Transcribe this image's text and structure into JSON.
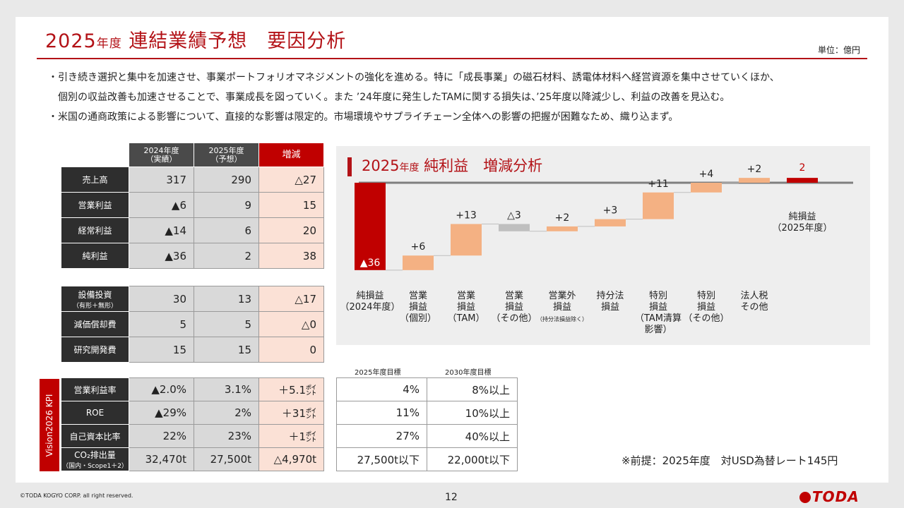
{
  "header": {
    "title_year": "2025",
    "title_year_suffix": "年度",
    "title_main": "連結業績予想　要因分析",
    "unit": "単位：億円"
  },
  "bullets": [
    "・引き続き選択と集中を加速させ、事業ポートフォリオマネジメントの強化を進める。特に「成長事業」の磁石材料、誘電体材料へ経営資源を集中させていくほか、",
    "　個別の収益改善も加速させることで、事業成長を図っていく。また ’24年度に発生したTAMに関する損失は、’25年度以降減少し、利益の改善を見込む。",
    "・米国の通商政策による影響について、直接的な影響は限定的。市場環境やサプライチェーン全体への影響の把握が困難なため、織り込まず。"
  ],
  "pl_table": {
    "headers": [
      {
        "line1": "2024年度",
        "line2": "（実績）"
      },
      {
        "line1": "2025年度",
        "line2": "（予想）"
      },
      {
        "line1": "増減",
        "line2": ""
      }
    ],
    "rows": [
      {
        "label": "売上高",
        "v1": "317",
        "v2": "290",
        "v3": "△27"
      },
      {
        "label": "営業利益",
        "v1": "▲6",
        "v2": "9",
        "v3": "15"
      },
      {
        "label": "経常利益",
        "v1": "▲14",
        "v2": "6",
        "v3": "20"
      },
      {
        "label": "純利益",
        "v1": "▲36",
        "v2": "2",
        "v3": "38"
      }
    ]
  },
  "capex_table": {
    "rows": [
      {
        "label": "設備投資",
        "sub": "（有形＋無形）",
        "v1": "30",
        "v2": "13",
        "v3": "△17"
      },
      {
        "label": "減価償却費",
        "sub": "",
        "v1": "5",
        "v2": "5",
        "v3": "△0"
      },
      {
        "label": "研究開発費",
        "sub": "",
        "v1": "15",
        "v2": "15",
        "v3": "0"
      }
    ]
  },
  "kpi": {
    "tab_label": "Vision2026 KPI",
    "rows": [
      {
        "label": "営業利益率",
        "sub": "",
        "v1": "▲2.0%",
        "v2": "3.1%",
        "v3": "＋5.1㌽",
        "t1": "4%",
        "t2": "8%以上"
      },
      {
        "label": "ROE",
        "sub": "",
        "v1": "▲29%",
        "v2": "2%",
        "v3": "＋31㌽",
        "t1": "11%",
        "t2": "10%以上"
      },
      {
        "label": "自己資本比率",
        "sub": "",
        "v1": "22%",
        "v2": "23%",
        "v3": "＋1㌽",
        "t1": "27%",
        "t2": "40%以上"
      },
      {
        "label": "CO₂排出量",
        "sub": "（国内・Scope1＋2）",
        "v1": "32,470t",
        "v2": "27,500t",
        "v3": "△4,970t",
        "t1": "27,500t以下",
        "t2": "22,000t以下"
      }
    ],
    "target_headers": [
      "2025年度目標",
      "2030年度目標"
    ]
  },
  "chart_data": {
    "type": "bar",
    "subtype": "waterfall",
    "title": "2025年度　純利益　増減分析",
    "title_year": "2025",
    "title_year_suffix": "年度",
    "title_rest": "純利益　増減分析",
    "categories": [
      [
        "純損益",
        "（2024年度）"
      ],
      [
        "営業",
        "損益",
        "（個別）"
      ],
      [
        "営業",
        "損益",
        "（TAM）"
      ],
      [
        "営業",
        "損益",
        "（その他）"
      ],
      [
        "営業外",
        "損益",
        "（持分法損益除く）"
      ],
      [
        "持分法",
        "損益"
      ],
      [
        "特別",
        "損益",
        "（TAM清算",
        "影響）"
      ],
      [
        "特別",
        "損益",
        "（その他）"
      ],
      [
        "法人税",
        "その他"
      ],
      [
        "純損益",
        "（2025年度）"
      ]
    ],
    "values": [
      -36,
      6,
      13,
      -3,
      2,
      3,
      11,
      4,
      2,
      2
    ],
    "labels": [
      "▲36",
      "+6",
      "+13",
      "△3",
      "+2",
      "+3",
      "+11",
      "+4",
      "+2",
      "2"
    ],
    "kinds": [
      "total",
      "increase",
      "increase",
      "decrease",
      "increase",
      "increase",
      "increase",
      "increase",
      "increase",
      "total"
    ],
    "colors": {
      "total": "#c00000",
      "increase": "#f4b183",
      "decrease": "#bfbfbf",
      "axis": "#7f7f7f"
    }
  },
  "footer": {
    "premise": "※前提：2025年度　対USD為替レート145円",
    "copyright": "©TODA KOGYO CORP. all right reserved.",
    "page": "12",
    "logo": "TODA"
  }
}
